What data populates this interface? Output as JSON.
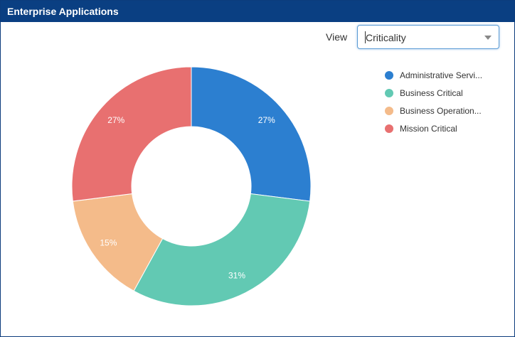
{
  "header": {
    "title": "Enterprise Applications"
  },
  "view": {
    "label": "View",
    "selected": "Criticality"
  },
  "legend_items": [
    {
      "label": "Administrative Servi...",
      "color": "#2c7fd0"
    },
    {
      "label": "Business Critical",
      "color": "#62c9b3"
    },
    {
      "label": "Business Operation...",
      "color": "#f4bb8a"
    },
    {
      "label": "Mission Critical",
      "color": "#e87070"
    }
  ],
  "chart_data": {
    "type": "pie",
    "donut": true,
    "start_angle_deg": 0,
    "direction": "clockwise",
    "categories": [
      "Administrative Servi...",
      "Business Critical",
      "Business Operation...",
      "Mission Critical"
    ],
    "values": [
      27,
      31,
      15,
      27
    ],
    "value_labels": [
      "27%",
      "31%",
      "15%",
      "27%"
    ],
    "colors": [
      "#2c7fd0",
      "#62c9b3",
      "#f4bb8a",
      "#e87070"
    ],
    "legend_position": "right"
  }
}
